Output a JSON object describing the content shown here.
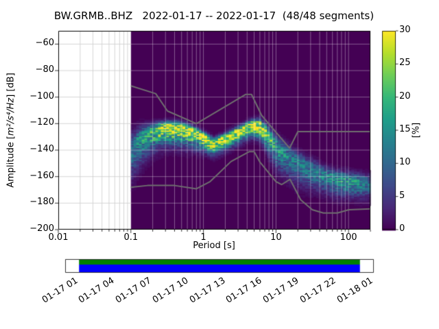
{
  "title": "BW.GRMB..BHZ   2022-01-17 -- 2022-01-17  (48/48 segments)",
  "header": {
    "station": "BW.GRMB..BHZ",
    "date_range": "2022-01-17 -- 2022-01-17",
    "segments": "48/48"
  },
  "axes": {
    "xlabel": "Period [s]",
    "ylabel_prefix": "Amplitude [",
    "ylabel_math": "m²/s⁴/Hz",
    "ylabel_suffix": "] [dB]",
    "x_ticks": [
      {
        "value": 0.01,
        "label": "0.01"
      },
      {
        "value": 0.1,
        "label": "0.1"
      },
      {
        "value": 1,
        "label": "1"
      },
      {
        "value": 10,
        "label": "10"
      },
      {
        "value": 100,
        "label": "100"
      }
    ],
    "y_ticks": [
      {
        "value": -60,
        "label": "−60"
      },
      {
        "value": -80,
        "label": "−80"
      },
      {
        "value": -100,
        "label": "−100"
      },
      {
        "value": -120,
        "label": "−120"
      },
      {
        "value": -140,
        "label": "−140"
      },
      {
        "value": -160,
        "label": "−160"
      },
      {
        "value": -180,
        "label": "−180"
      },
      {
        "value": -200,
        "label": "−200"
      }
    ]
  },
  "colorbar": {
    "label": "[%]",
    "max": 30,
    "ticks": [
      {
        "value": 0,
        "label": "0"
      },
      {
        "value": 5,
        "label": "5"
      },
      {
        "value": 10,
        "label": "10"
      },
      {
        "value": 15,
        "label": "15"
      },
      {
        "value": 20,
        "label": "20"
      },
      {
        "value": 25,
        "label": "25"
      },
      {
        "value": 30,
        "label": "30"
      }
    ],
    "colormap_stops": [
      "#440154",
      "#482878",
      "#3e4989",
      "#31688e",
      "#26828e",
      "#1f9e89",
      "#35b779",
      "#6ece58",
      "#b5de2b",
      "#fde725"
    ]
  },
  "timeline": {
    "date_labels": [
      "01-17 01",
      "01-17 04",
      "01-17 07",
      "01-17 10",
      "01-17 13",
      "01-17 16",
      "01-17 19",
      "01-17 22",
      "01-18 01"
    ],
    "coverage_color_top": "#008000",
    "coverage_color_bottom": "#0000ff",
    "coverage_start_frac": 0.045,
    "coverage_end_frac": 0.955
  },
  "chart_data": {
    "type": "heatmap",
    "title": "BW.GRMB..BHZ   2022-01-17 -- 2022-01-17  (48/48 segments)",
    "xlabel": "Period [s]",
    "ylabel": "Amplitude [m²/s⁴/Hz] [dB]",
    "xscale": "log",
    "xlim": [
      0.01,
      200
    ],
    "ylim": [
      -200,
      -50
    ],
    "x_major_ticks": [
      0.01,
      0.1,
      1,
      10,
      100
    ],
    "y_major_ticks": [
      -60,
      -80,
      -100,
      -120,
      -140,
      -160,
      -180,
      -200
    ],
    "colorbar": {
      "label": "[%]",
      "min": 0,
      "max": 30,
      "colormap": "viridis"
    },
    "background_value_color": "#440154",
    "data_period_range": [
      0.1,
      200
    ],
    "psd_distribution": {
      "periods": [
        0.1,
        0.13,
        0.17,
        0.22,
        0.3,
        0.4,
        0.55,
        0.75,
        1.0,
        1.4,
        2.0,
        3.0,
        4.5,
        6.0,
        8.0,
        10,
        14,
        20,
        30,
        45,
        65,
        100,
        150,
        200
      ],
      "mode_db": [
        -140,
        -132,
        -127,
        -124,
        -122,
        -122,
        -123,
        -126,
        -130,
        -135,
        -131,
        -126,
        -121,
        -121,
        -129,
        -137,
        -143,
        -149,
        -154,
        -158,
        -161,
        -163,
        -164,
        -165
      ],
      "peak_percent": [
        10,
        14,
        18,
        22,
        28,
        30,
        28,
        27,
        28,
        30,
        30,
        30,
        30,
        28,
        22,
        16,
        13,
        12,
        12,
        13,
        14,
        16,
        14,
        10
      ],
      "spread_below_db": [
        14,
        12,
        10,
        9,
        8,
        8,
        8,
        7,
        6,
        5,
        5,
        5,
        5,
        6,
        8,
        10,
        10,
        10,
        9,
        8,
        8,
        7,
        7,
        7
      ],
      "spread_above_db": [
        8,
        6,
        4,
        3,
        2.5,
        2.5,
        2.5,
        2.5,
        2.5,
        2.5,
        2.5,
        2.5,
        2.5,
        3,
        4,
        5,
        5,
        5,
        5,
        4,
        4,
        4,
        4,
        4
      ]
    },
    "noise_models": {
      "color": "#6f6f6f",
      "high": {
        "periods": [
          0.1,
          0.22,
          0.32,
          0.8,
          3.8,
          4.6,
          6.3,
          7.9,
          15.4,
          20.0,
          200.0
        ],
        "db": [
          -91.5,
          -97.4,
          -110.5,
          -120.0,
          -98.0,
          -98.0,
          -113.5,
          -120.0,
          -138.5,
          -126.0,
          -126.0
        ]
      },
      "low": {
        "periods": [
          0.1,
          0.17,
          0.4,
          0.8,
          1.24,
          2.4,
          4.3,
          5.0,
          6.0,
          10.0,
          12.0,
          15.6,
          21.9,
          31.6,
          45.0,
          70.0,
          101.0,
          200.0
        ],
        "db": [
          -168.0,
          -166.7,
          -166.7,
          -169.2,
          -163.7,
          -148.6,
          -141.1,
          -141.1,
          -149.0,
          -163.8,
          -166.0,
          -162.0,
          -177.5,
          -185.0,
          -187.5,
          -187.5,
          -185.0,
          -184.4
        ]
      }
    }
  }
}
